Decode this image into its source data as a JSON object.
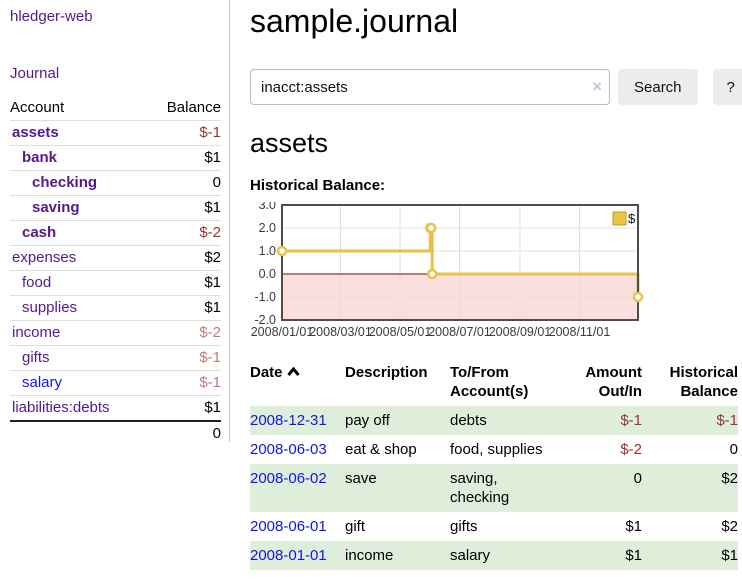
{
  "app": {
    "title": "hledger-web"
  },
  "sidebar": {
    "journal_link": "Journal",
    "accounts_table": {
      "headers": {
        "account": "Account",
        "balance": "Balance"
      },
      "rows": [
        {
          "name": "assets",
          "depth": 0,
          "bold": true,
          "link": "purple",
          "balance": "$-1",
          "bal_color": "neg",
          "bal_bold": true
        },
        {
          "name": "bank",
          "depth": 1,
          "bold": true,
          "link": "purple",
          "balance": "$1",
          "bal_color": "",
          "bal_bold": true
        },
        {
          "name": "checking",
          "depth": 2,
          "bold": true,
          "link": "purple",
          "balance": "0",
          "bal_color": "",
          "bal_bold": true
        },
        {
          "name": "saving",
          "depth": 2,
          "bold": true,
          "link": "purple",
          "balance": "$1",
          "bal_color": "",
          "bal_bold": true
        },
        {
          "name": "cash",
          "depth": 1,
          "bold": true,
          "link": "purple",
          "balance": "$-2",
          "bal_color": "neg",
          "bal_bold": true
        },
        {
          "name": "expenses",
          "depth": 0,
          "bold": false,
          "link": "purple",
          "balance": "$2",
          "bal_color": "",
          "bal_bold": false
        },
        {
          "name": "food",
          "depth": 1,
          "bold": false,
          "link": "purple",
          "balance": "$1",
          "bal_color": "",
          "bal_bold": false
        },
        {
          "name": "supplies",
          "depth": 1,
          "bold": false,
          "link": "purple",
          "balance": "$1",
          "bal_color": "",
          "bal_bold": false
        },
        {
          "name": "income",
          "depth": 0,
          "bold": false,
          "link": "purple",
          "balance": "$-2",
          "bal_color": "rose",
          "bal_bold": false
        },
        {
          "name": "gifts",
          "depth": 1,
          "bold": false,
          "link": "purple",
          "balance": "$-1",
          "bal_color": "rose",
          "bal_bold": false
        },
        {
          "name": "salary",
          "depth": 1,
          "bold": false,
          "link": "blue",
          "balance": "$-1",
          "bal_color": "rose",
          "bal_bold": false
        },
        {
          "name": "liabilities:debts",
          "depth": 0,
          "bold": false,
          "link": "purple",
          "balance": "$1",
          "bal_color": "",
          "bal_bold": false
        }
      ],
      "total": "0"
    }
  },
  "main": {
    "title": "sample.journal",
    "search": {
      "value": "inacct:assets",
      "clear_icon": "×",
      "search_button": "Search",
      "help_button": "?"
    },
    "account_heading": "assets",
    "chart_label": "Historical Balance:",
    "register": {
      "headers": {
        "date": "Date",
        "description": "Description",
        "accounts": "To/From Account(s)",
        "amount": "Amount Out/In",
        "balance": "Historical Balance"
      },
      "rows": [
        {
          "date": "2008-12-31",
          "description": "pay off",
          "accounts": "debts",
          "amount": "$-1",
          "balance": "$-1",
          "shaded": true
        },
        {
          "date": "2008-06-03",
          "description": "eat & shop",
          "accounts": "food, supplies",
          "amount": "$-2",
          "balance": "0",
          "shaded": false
        },
        {
          "date": "2008-06-02",
          "description": "save",
          "accounts": "saving, checking",
          "amount": "0",
          "balance": "$2",
          "shaded": true
        },
        {
          "date": "2008-06-01",
          "description": "gift",
          "accounts": "gifts",
          "amount": "$1",
          "balance": "$2",
          "shaded": false
        },
        {
          "date": "2008-01-01",
          "description": "income",
          "accounts": "salary",
          "amount": "$1",
          "balance": "$1",
          "shaded": true
        }
      ]
    }
  },
  "chart_data": {
    "type": "line",
    "title": "Historical Balance:",
    "step": true,
    "series": [
      {
        "name": "$",
        "points": [
          [
            "2008-01-01",
            1
          ],
          [
            "2008-06-01",
            2
          ],
          [
            "2008-06-02",
            2
          ],
          [
            "2008-06-03",
            0
          ],
          [
            "2008-12-31",
            -1
          ]
        ]
      }
    ],
    "xlim": [
      "2008-01-01",
      "2008-12-31"
    ],
    "ylim": [
      -2,
      3
    ],
    "x_ticks": [
      "2008/01/01",
      "2008/03/01",
      "2008/05/01",
      "2008/07/01",
      "2008/09/01",
      "2008/11/01"
    ],
    "y_ticks": [
      3.0,
      2.0,
      1.0,
      0.0,
      -1.0,
      -2.0
    ],
    "grid": true,
    "legend_position": "top-right",
    "colors": {
      "series": "#e6c14c",
      "legend_fill": "#eac63f",
      "legend_border": "#b89a2e",
      "point_fill": "#ffffff",
      "negative_region": "#fbdfdf",
      "zero_line": "#8b0000",
      "plot_border": "#4d4d4d",
      "gridline": "#e0e0e0",
      "tick_text": "#3a3a3a"
    }
  },
  "colors": {
    "link_purple": "#551a8b",
    "link_blue": "#1414e0",
    "negative": "#993333",
    "negative_muted": "#c47a7a",
    "row_stripe_green": "#dfeeda",
    "button_bg": "#ececec"
  }
}
